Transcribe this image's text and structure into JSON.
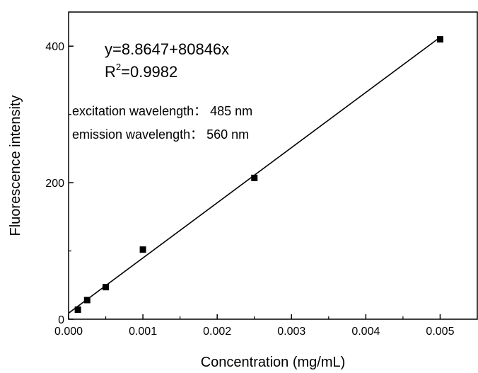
{
  "chart_data": {
    "type": "scatter",
    "xlabel": "Concentration (mg/mL)",
    "ylabel": "Fluorescence intensity",
    "xlim": [
      0,
      0.0055
    ],
    "ylim": [
      0,
      450
    ],
    "x_ticks": [
      0.0,
      0.001,
      0.002,
      0.003,
      0.004,
      0.005
    ],
    "x_tick_labels": [
      "0.000",
      "0.001",
      "0.002",
      "0.003",
      "0.004",
      "0.005"
    ],
    "y_ticks": [
      0,
      200,
      400
    ],
    "y_tick_labels": [
      "0",
      "200",
      "400"
    ],
    "series": [
      {
        "marker": "square",
        "color": "#000000",
        "points": [
          {
            "x": 0.000125,
            "y": 14
          },
          {
            "x": 0.00025,
            "y": 28
          },
          {
            "x": 0.0005,
            "y": 47
          },
          {
            "x": 0.001,
            "y": 102
          },
          {
            "x": 0.0025,
            "y": 207
          },
          {
            "x": 0.005,
            "y": 410
          }
        ]
      }
    ],
    "fit_line": {
      "intercept": 8.8647,
      "slope": 80846,
      "x_range": [
        0,
        0.005
      ],
      "color": "#000000"
    },
    "grid": false,
    "annotations": {
      "equation": "y=8.8647+80846x",
      "r2_prefix": "R",
      "r2_sup": "2",
      "r2_value": "=0.9982",
      "excitation": "excitation wavelength： 485 nm",
      "emission": "emission wavelength： 560 nm"
    }
  }
}
